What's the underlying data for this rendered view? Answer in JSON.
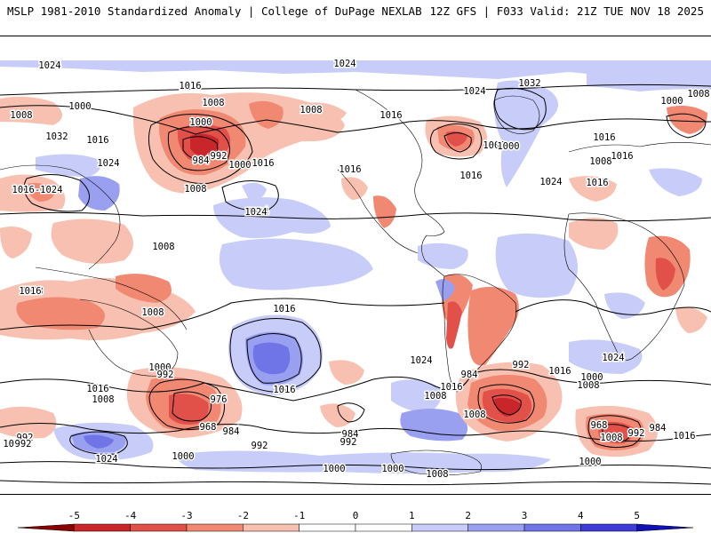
{
  "header": {
    "left_title": "MSLP 1981-2010 Standardized Anomaly | College of DuPage NEXLAB",
    "right_title": "12Z GFS | F033 Valid: 21Z TUE NOV 18 2025"
  },
  "colors": {
    "neg5": "#8b0000",
    "neg4": "#c8262a",
    "neg3": "#e2504a",
    "neg2": "#f08872",
    "neg1": "#f8c0b0",
    "zero": "#ffffff",
    "pos1": "#c8ccf8",
    "pos2": "#9aa0f0",
    "pos3": "#6f74e6",
    "pos4": "#3c3cd8",
    "pos5": "#1010b8",
    "land_outline": "#000000",
    "isobar": "#000000"
  },
  "colorbar": {
    "ticks": [
      "-5",
      "-4",
      "-3",
      "-2",
      "-1",
      "0",
      "1",
      "2",
      "3",
      "4",
      "5"
    ]
  },
  "isobars": [
    {
      "text": "1024"
    },
    {
      "text": "1024"
    },
    {
      "text": "1016"
    },
    {
      "text": "1008"
    },
    {
      "text": "1000"
    },
    {
      "text": "1008"
    },
    {
      "text": "1000"
    },
    {
      "text": "992"
    },
    {
      "text": "984"
    },
    {
      "text": "1000"
    },
    {
      "text": "1008"
    },
    {
      "text": "1016"
    },
    {
      "text": "1032"
    },
    {
      "text": "1016"
    },
    {
      "text": "1024"
    },
    {
      "text": "1016-1024"
    },
    {
      "text": "1016"
    },
    {
      "text": "1024"
    },
    {
      "text": "1008"
    },
    {
      "text": "1016"
    },
    {
      "text": "1032"
    },
    {
      "text": "1024"
    },
    {
      "text": "1016"
    },
    {
      "text": "1008"
    },
    {
      "text": "1000"
    },
    {
      "text": "1016"
    },
    {
      "text": "1016"
    },
    {
      "text": "1024"
    },
    {
      "text": "1000"
    },
    {
      "text": "1008"
    },
    {
      "text": "1016"
    },
    {
      "text": "1008"
    },
    {
      "text": "1008"
    },
    {
      "text": "1008"
    },
    {
      "text": "1016"
    },
    {
      "text": "1008"
    },
    {
      "text": "1016"
    },
    {
      "text": "1024"
    },
    {
      "text": "1000"
    },
    {
      "text": "992"
    },
    {
      "text": "1016"
    },
    {
      "text": "1008"
    },
    {
      "text": "976"
    },
    {
      "text": "968"
    },
    {
      "text": "984"
    },
    {
      "text": "992"
    },
    {
      "text": "1000"
    },
    {
      "text": "992"
    },
    {
      "text": "1016"
    },
    {
      "text": "1024"
    },
    {
      "text": "1008"
    },
    {
      "text": "984"
    },
    {
      "text": "992"
    },
    {
      "text": "992"
    },
    {
      "text": "1000"
    },
    {
      "text": "1016"
    },
    {
      "text": "1008"
    },
    {
      "text": "1000"
    },
    {
      "text": "1000"
    },
    {
      "text": "984"
    },
    {
      "text": "992"
    },
    {
      "text": "1016"
    },
    {
      "text": "1008"
    },
    {
      "text": "1000"
    },
    {
      "text": "968"
    },
    {
      "text": "984"
    },
    {
      "text": "992"
    },
    {
      "text": "1008"
    },
    {
      "text": "1016"
    },
    {
      "text": "1000"
    },
    {
      "text": "1024"
    },
    {
      "text": "1024"
    },
    {
      "text": "1008"
    }
  ]
}
